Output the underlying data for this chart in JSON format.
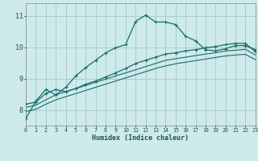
{
  "xlabel": "Humidex (Indice chaleur)",
  "bg_color": "#ceeaea",
  "grid_color": "#aacece",
  "line_color": "#1a6b6b",
  "x_ticks": [
    0,
    1,
    2,
    3,
    4,
    5,
    6,
    7,
    8,
    9,
    10,
    11,
    12,
    13,
    14,
    15,
    16,
    17,
    18,
    19,
    20,
    21,
    22,
    23
  ],
  "y_ticks": [
    8,
    9,
    10,
    11
  ],
  "ylim": [
    7.5,
    11.4
  ],
  "xlim": [
    0,
    23
  ],
  "line1_x": [
    0,
    1,
    2,
    3,
    4,
    5,
    6,
    7,
    8,
    9,
    10,
    11,
    12,
    13,
    14,
    15,
    16,
    17,
    18,
    19,
    20,
    21,
    22,
    23
  ],
  "line1_y": [
    7.72,
    8.28,
    8.65,
    8.48,
    8.72,
    9.08,
    9.35,
    9.58,
    9.82,
    9.98,
    10.08,
    10.82,
    11.02,
    10.8,
    10.8,
    10.72,
    10.35,
    10.2,
    9.92,
    9.88,
    9.95,
    10.05,
    10.05,
    9.92
  ],
  "line2_x": [
    0,
    1,
    2,
    3,
    4,
    5,
    6,
    7,
    8,
    9,
    10,
    11,
    12,
    13,
    14,
    15,
    16,
    17,
    18,
    19,
    20,
    21,
    22,
    23
  ],
  "line2_y": [
    8.18,
    8.25,
    8.52,
    8.65,
    8.58,
    8.68,
    8.82,
    8.92,
    9.05,
    9.18,
    9.32,
    9.48,
    9.58,
    9.68,
    9.78,
    9.82,
    9.88,
    9.92,
    9.98,
    10.02,
    10.08,
    10.12,
    10.12,
    9.85
  ],
  "line3_x": [
    0,
    1,
    2,
    3,
    4,
    5,
    6,
    7,
    8,
    9,
    10,
    11,
    12,
    13,
    14,
    15,
    16,
    17,
    18,
    19,
    20,
    21,
    22,
    23
  ],
  "line3_y": [
    8.08,
    8.15,
    8.32,
    8.48,
    8.58,
    8.68,
    8.78,
    8.88,
    8.98,
    9.08,
    9.18,
    9.28,
    9.38,
    9.48,
    9.58,
    9.63,
    9.68,
    9.73,
    9.78,
    9.82,
    9.88,
    9.9,
    9.93,
    9.75
  ],
  "line4_x": [
    0,
    1,
    2,
    3,
    4,
    5,
    6,
    7,
    8,
    9,
    10,
    11,
    12,
    13,
    14,
    15,
    16,
    17,
    18,
    19,
    20,
    21,
    22,
    23
  ],
  "line4_y": [
    7.95,
    8.02,
    8.18,
    8.32,
    8.42,
    8.52,
    8.62,
    8.72,
    8.82,
    8.92,
    9.02,
    9.12,
    9.22,
    9.32,
    9.4,
    9.47,
    9.52,
    9.57,
    9.62,
    9.67,
    9.72,
    9.75,
    9.77,
    9.6
  ]
}
